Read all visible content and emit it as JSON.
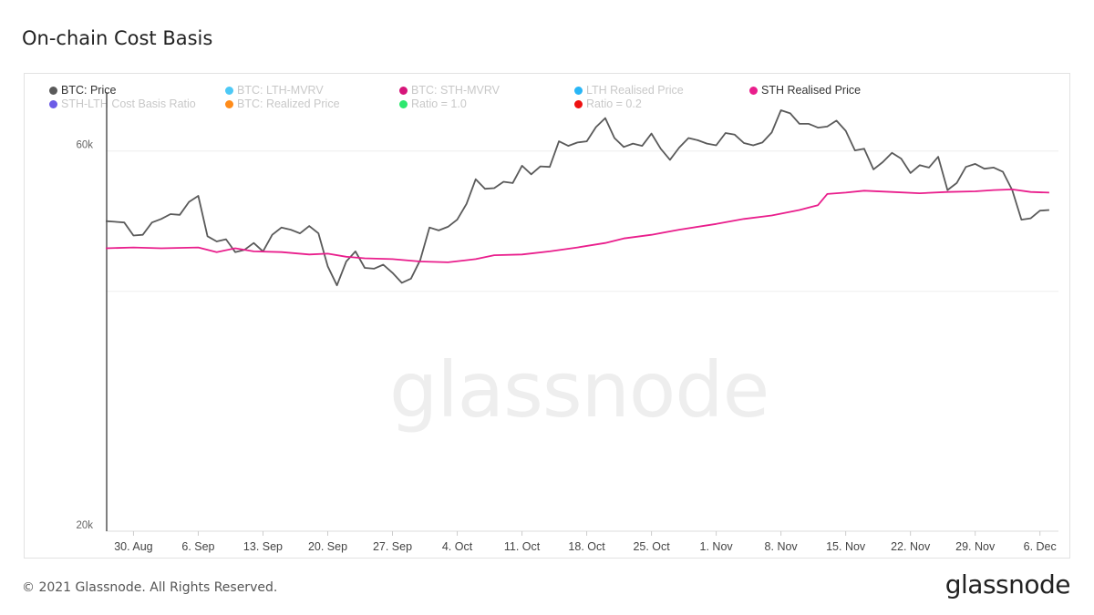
{
  "title": "On-chain Cost Basis",
  "legend": [
    {
      "label": "BTC: Price",
      "color": "#5a5a5a",
      "active": true
    },
    {
      "label": "BTC: LTH-MVRV",
      "color": "#4dc9f6",
      "active": false
    },
    {
      "label": "BTC: STH-MVRV",
      "color": "#d6157a",
      "active": false
    },
    {
      "label": "LTH Realised Price",
      "color": "#29b6f6",
      "active": false
    },
    {
      "label": "STH Realised Price",
      "color": "#e91e8c",
      "active": true
    },
    {
      "label": "STH-LTH Cost Basis Ratio",
      "color": "#6c5ce7",
      "active": false
    },
    {
      "label": "BTC: Realized Price",
      "color": "#ff8c1a",
      "active": false
    },
    {
      "label": "Ratio = 1.0",
      "color": "#2ee86f",
      "active": false
    },
    {
      "label": "Ratio = 0.2",
      "color": "#ee1111",
      "active": false
    }
  ],
  "watermark": "glassnode",
  "footer": {
    "copyright": "© 2021 Glassnode. All Rights Reserved.",
    "brand": "glassnode"
  },
  "chart_data": {
    "type": "line",
    "scale": "log",
    "ylim": [
      20000,
      75000
    ],
    "y_ticks": [
      {
        "value": 20000,
        "label": "20k"
      },
      {
        "value": 60000,
        "label": "60k"
      }
    ],
    "x_start": "2021-08-27",
    "x_end": "2021-12-08",
    "x_ticks": [
      {
        "date": "2021-08-30",
        "label": "30. Aug"
      },
      {
        "date": "2021-09-06",
        "label": "6. Sep"
      },
      {
        "date": "2021-09-13",
        "label": "13. Sep"
      },
      {
        "date": "2021-09-20",
        "label": "20. Sep"
      },
      {
        "date": "2021-09-27",
        "label": "27. Sep"
      },
      {
        "date": "2021-10-04",
        "label": "4. Oct"
      },
      {
        "date": "2021-10-11",
        "label": "11. Oct"
      },
      {
        "date": "2021-10-18",
        "label": "18. Oct"
      },
      {
        "date": "2021-10-25",
        "label": "25. Oct"
      },
      {
        "date": "2021-11-01",
        "label": "1. Nov"
      },
      {
        "date": "2021-11-08",
        "label": "8. Nov"
      },
      {
        "date": "2021-11-15",
        "label": "15. Nov"
      },
      {
        "date": "2021-11-22",
        "label": "22. Nov"
      },
      {
        "date": "2021-11-29",
        "label": "29. Nov"
      },
      {
        "date": "2021-12-06",
        "label": "6. Dec"
      }
    ],
    "series": [
      {
        "name": "BTC: Price",
        "color": "#5a5a5a",
        "points": [
          [
            "2021-08-27",
            49000
          ],
          [
            "2021-08-28",
            48900
          ],
          [
            "2021-08-29",
            48800
          ],
          [
            "2021-08-30",
            47000
          ],
          [
            "2021-08-31",
            47100
          ],
          [
            "2021-09-01",
            48800
          ],
          [
            "2021-09-02",
            49300
          ],
          [
            "2021-09-03",
            50000
          ],
          [
            "2021-09-04",
            49900
          ],
          [
            "2021-09-05",
            51800
          ],
          [
            "2021-09-06",
            52700
          ],
          [
            "2021-09-07",
            46900
          ],
          [
            "2021-09-08",
            46200
          ],
          [
            "2021-09-09",
            46500
          ],
          [
            "2021-09-10",
            44800
          ],
          [
            "2021-09-11",
            45100
          ],
          [
            "2021-09-12",
            46000
          ],
          [
            "2021-09-13",
            44900
          ],
          [
            "2021-09-14",
            47100
          ],
          [
            "2021-09-15",
            48100
          ],
          [
            "2021-09-16",
            47800
          ],
          [
            "2021-09-17",
            47300
          ],
          [
            "2021-09-18",
            48300
          ],
          [
            "2021-09-19",
            47300
          ],
          [
            "2021-09-20",
            43000
          ],
          [
            "2021-09-21",
            40700
          ],
          [
            "2021-09-22",
            43600
          ],
          [
            "2021-09-23",
            44900
          ],
          [
            "2021-09-24",
            42800
          ],
          [
            "2021-09-25",
            42700
          ],
          [
            "2021-09-26",
            43200
          ],
          [
            "2021-09-27",
            42200
          ],
          [
            "2021-09-28",
            41000
          ],
          [
            "2021-09-29",
            41500
          ],
          [
            "2021-09-30",
            43800
          ],
          [
            "2021-10-01",
            48100
          ],
          [
            "2021-10-02",
            47700
          ],
          [
            "2021-10-03",
            48200
          ],
          [
            "2021-10-04",
            49200
          ],
          [
            "2021-10-05",
            51500
          ],
          [
            "2021-10-06",
            55300
          ],
          [
            "2021-10-07",
            53800
          ],
          [
            "2021-10-08",
            53900
          ],
          [
            "2021-10-09",
            54900
          ],
          [
            "2021-10-10",
            54700
          ],
          [
            "2021-10-11",
            57500
          ],
          [
            "2021-10-12",
            56100
          ],
          [
            "2021-10-13",
            57400
          ],
          [
            "2021-10-14",
            57300
          ],
          [
            "2021-10-15",
            61700
          ],
          [
            "2021-10-16",
            60900
          ],
          [
            "2021-10-17",
            61500
          ],
          [
            "2021-10-18",
            61700
          ],
          [
            "2021-10-19",
            64300
          ],
          [
            "2021-10-20",
            66000
          ],
          [
            "2021-10-21",
            62300
          ],
          [
            "2021-10-22",
            60700
          ],
          [
            "2021-10-23",
            61300
          ],
          [
            "2021-10-24",
            60900
          ],
          [
            "2021-10-25",
            63100
          ],
          [
            "2021-10-26",
            60400
          ],
          [
            "2021-10-27",
            58500
          ],
          [
            "2021-10-28",
            60600
          ],
          [
            "2021-10-29",
            62300
          ],
          [
            "2021-10-30",
            61900
          ],
          [
            "2021-10-31",
            61300
          ],
          [
            "2021-11-01",
            61000
          ],
          [
            "2021-11-02",
            63200
          ],
          [
            "2021-11-03",
            62900
          ],
          [
            "2021-11-04",
            61400
          ],
          [
            "2021-11-05",
            61000
          ],
          [
            "2021-11-06",
            61500
          ],
          [
            "2021-11-07",
            63300
          ],
          [
            "2021-11-08",
            67500
          ],
          [
            "2021-11-09",
            66900
          ],
          [
            "2021-11-10",
            64900
          ],
          [
            "2021-11-11",
            64900
          ],
          [
            "2021-11-12",
            64200
          ],
          [
            "2021-11-13",
            64400
          ],
          [
            "2021-11-14",
            65500
          ],
          [
            "2021-11-15",
            63600
          ],
          [
            "2021-11-16",
            60100
          ],
          [
            "2021-11-17",
            60400
          ],
          [
            "2021-11-18",
            56900
          ],
          [
            "2021-11-19",
            58100
          ],
          [
            "2021-11-20",
            59700
          ],
          [
            "2021-11-21",
            58700
          ],
          [
            "2021-11-22",
            56300
          ],
          [
            "2021-11-23",
            57600
          ],
          [
            "2021-11-24",
            57200
          ],
          [
            "2021-11-25",
            59000
          ],
          [
            "2021-11-26",
            53600
          ],
          [
            "2021-11-27",
            54700
          ],
          [
            "2021-11-28",
            57300
          ],
          [
            "2021-11-29",
            57800
          ],
          [
            "2021-11-30",
            57000
          ],
          [
            "2021-12-01",
            57200
          ],
          [
            "2021-12-02",
            56500
          ],
          [
            "2021-12-03",
            53600
          ],
          [
            "2021-12-04",
            49200
          ],
          [
            "2021-12-05",
            49400
          ],
          [
            "2021-12-06",
            50500
          ],
          [
            "2021-12-07",
            50600
          ]
        ]
      },
      {
        "name": "STH Realised Price",
        "color": "#e91e8c",
        "points": [
          [
            "2021-08-27",
            45300
          ],
          [
            "2021-08-30",
            45400
          ],
          [
            "2021-09-02",
            45300
          ],
          [
            "2021-09-06",
            45400
          ],
          [
            "2021-09-08",
            44800
          ],
          [
            "2021-09-10",
            45300
          ],
          [
            "2021-09-12",
            44900
          ],
          [
            "2021-09-15",
            44800
          ],
          [
            "2021-09-18",
            44500
          ],
          [
            "2021-09-20",
            44600
          ],
          [
            "2021-09-22",
            44200
          ],
          [
            "2021-09-24",
            44000
          ],
          [
            "2021-09-27",
            43900
          ],
          [
            "2021-09-30",
            43600
          ],
          [
            "2021-10-03",
            43500
          ],
          [
            "2021-10-06",
            43900
          ],
          [
            "2021-10-08",
            44400
          ],
          [
            "2021-10-11",
            44500
          ],
          [
            "2021-10-14",
            44900
          ],
          [
            "2021-10-17",
            45400
          ],
          [
            "2021-10-20",
            46000
          ],
          [
            "2021-10-22",
            46600
          ],
          [
            "2021-10-25",
            47100
          ],
          [
            "2021-10-28",
            47800
          ],
          [
            "2021-11-01",
            48600
          ],
          [
            "2021-11-04",
            49300
          ],
          [
            "2021-11-07",
            49800
          ],
          [
            "2021-11-10",
            50600
          ],
          [
            "2021-11-12",
            51300
          ],
          [
            "2021-11-13",
            53000
          ],
          [
            "2021-11-15",
            53200
          ],
          [
            "2021-11-17",
            53500
          ],
          [
            "2021-11-20",
            53300
          ],
          [
            "2021-11-23",
            53100
          ],
          [
            "2021-11-26",
            53300
          ],
          [
            "2021-11-29",
            53400
          ],
          [
            "2021-12-01",
            53600
          ],
          [
            "2021-12-03",
            53700
          ],
          [
            "2021-12-05",
            53300
          ],
          [
            "2021-12-07",
            53200
          ]
        ]
      }
    ]
  }
}
